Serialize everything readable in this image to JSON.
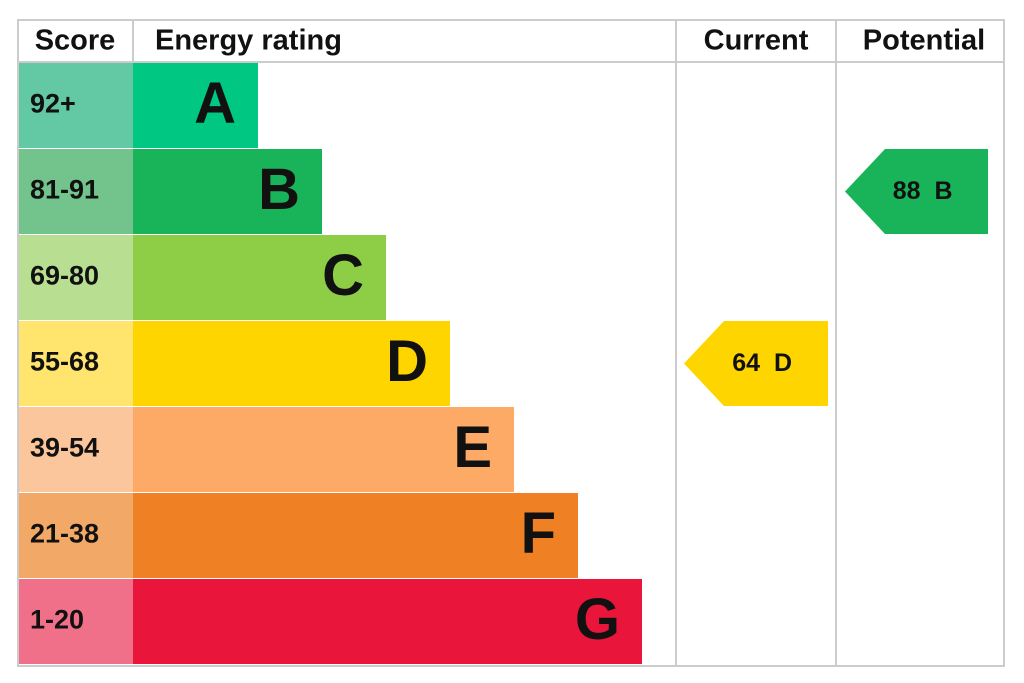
{
  "header": {
    "score": "Score",
    "energy_rating": "Energy rating",
    "current": "Current",
    "potential": "Potential"
  },
  "bands": [
    {
      "score": "92+",
      "letter": "A"
    },
    {
      "score": "81-91",
      "letter": "B"
    },
    {
      "score": "69-80",
      "letter": "C"
    },
    {
      "score": "55-68",
      "letter": "D"
    },
    {
      "score": "39-54",
      "letter": "E"
    },
    {
      "score": "21-38",
      "letter": "F"
    },
    {
      "score": "1-20",
      "letter": "G"
    }
  ],
  "current": {
    "value": "64",
    "letter": "D"
  },
  "potential": {
    "value": "88",
    "letter": "B"
  }
}
